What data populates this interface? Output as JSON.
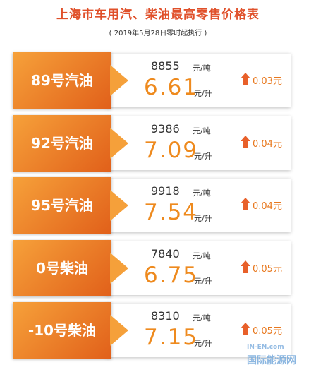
{
  "title": "上海市车用汽、柴油最高零售价格表",
  "subtitle": "( 2019年5月28日零时起执行 )",
  "rows": [
    {
      "name": "89号汽油",
      "price_ton": "8855",
      "unit_ton": "元/吨",
      "price_liter": "6.61",
      "unit_liter": "元/升",
      "change": "0.03元"
    },
    {
      "name": "92号汽油",
      "price_ton": "9386",
      "unit_ton": "元/吨",
      "price_liter": "7.09",
      "unit_liter": "元/升",
      "change": "0.04元"
    },
    {
      "name": "95号汽油",
      "price_ton": "9918",
      "unit_ton": "元/吨",
      "price_liter": "7.54",
      "unit_liter": "元/升",
      "change": "0.04元"
    },
    {
      "name": "0号柴油",
      "price_ton": "7840",
      "unit_ton": "元/吨",
      "price_liter": "6.75",
      "unit_liter": "元/升",
      "change": "0.05元"
    },
    {
      "name": "-10号柴油",
      "price_ton": "8310",
      "unit_ton": "元/吨",
      "price_liter": "7.15",
      "unit_liter": "元/升",
      "change": "0.05元"
    }
  ],
  "watermark": {
    "site": "IN-EN.com",
    "name": "国际能源网"
  }
}
